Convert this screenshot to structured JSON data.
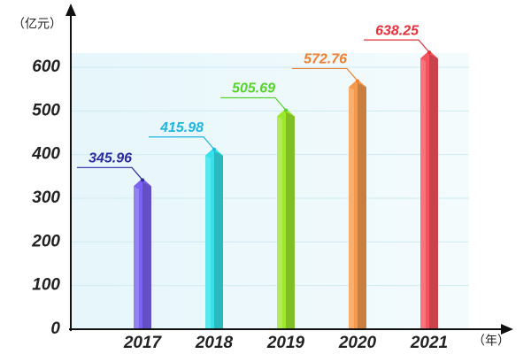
{
  "chart_data": {
    "type": "bar",
    "y_label": "（亿元）",
    "x_label": "（年）",
    "categories": [
      "2017",
      "2018",
      "2019",
      "2020",
      "2021"
    ],
    "values": [
      345.96,
      415.98,
      505.69,
      572.76,
      638.25
    ],
    "colors": [
      "#7a62f2",
      "#33e2ea",
      "#9ee82c",
      "#f59a4c",
      "#f5525c"
    ],
    "label_colors": [
      "#2a2a9e",
      "#1fb6e2",
      "#56d42a",
      "#f08030",
      "#e6303a"
    ],
    "ylim": [
      0,
      600
    ],
    "yticks": [
      0,
      100,
      200,
      300,
      400,
      500,
      600
    ],
    "grid": true
  }
}
